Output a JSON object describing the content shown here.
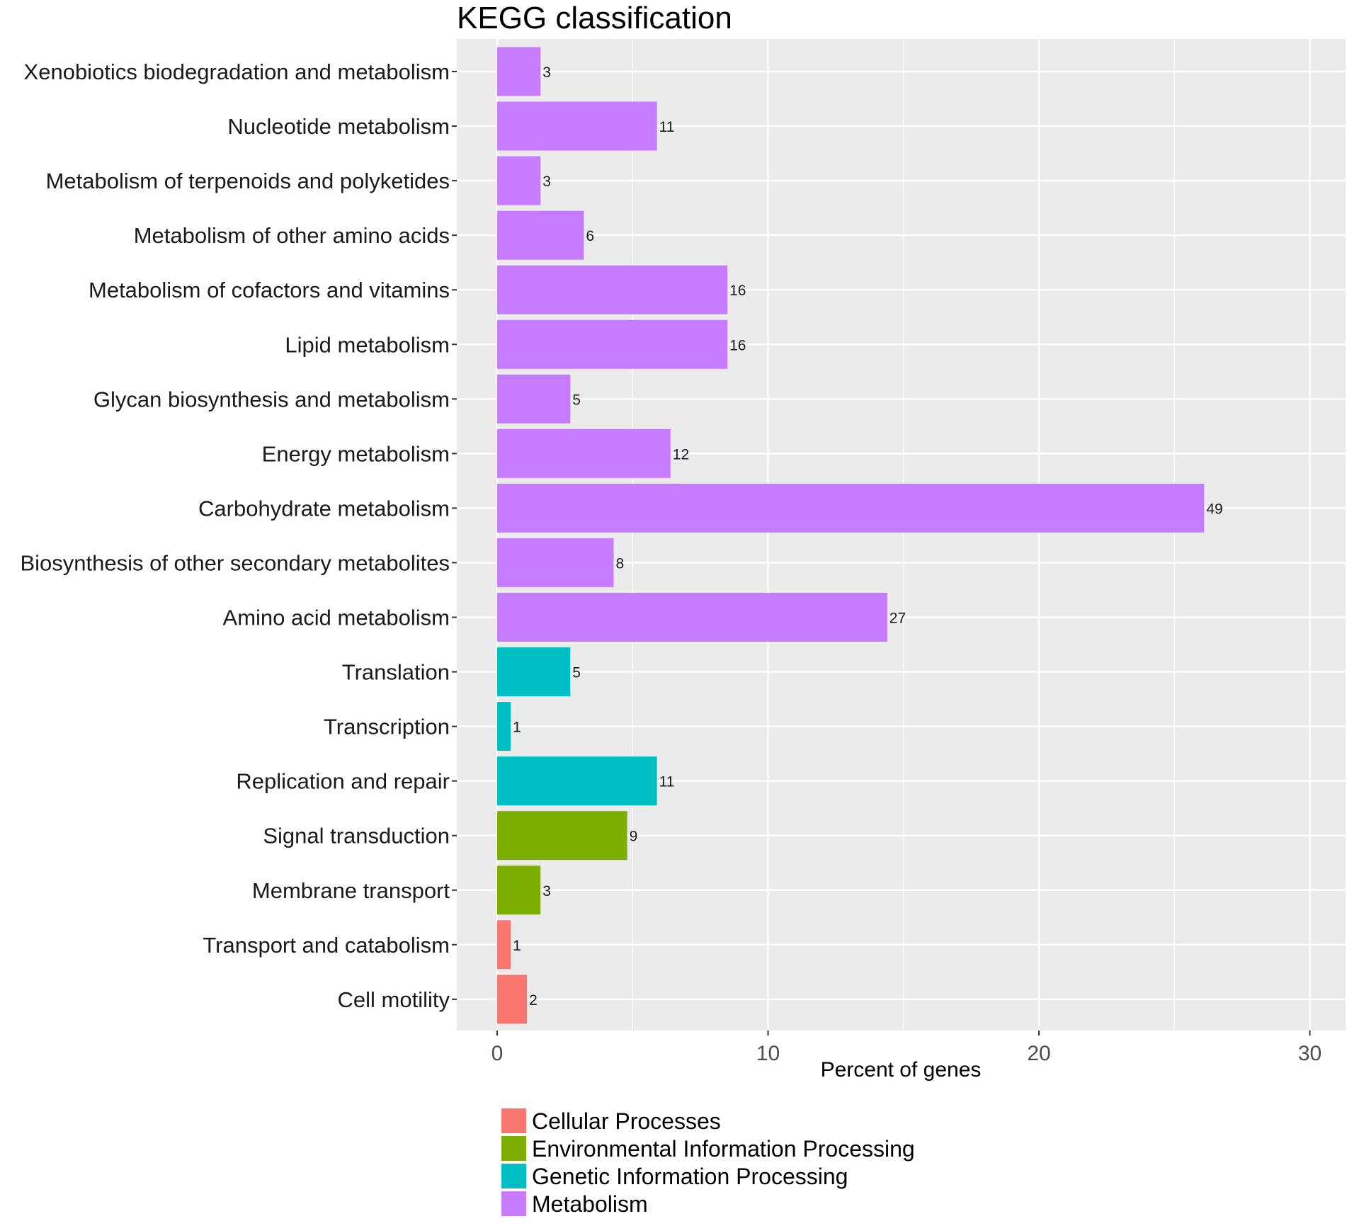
{
  "chart_data": {
    "type": "bar",
    "orientation": "horizontal",
    "title": "KEGG classification",
    "xlabel": "Percent of genes",
    "ylabel": "",
    "xlim": [
      0,
      31
    ],
    "xticks": [
      0,
      10,
      20,
      30
    ],
    "x_minor_ticks": [
      5,
      15,
      25
    ],
    "grid": true,
    "legend_position": "bottom-left",
    "categories": [
      "Xenobiotics biodegradation and metabolism",
      "Nucleotide metabolism",
      "Metabolism of terpenoids and polyketides",
      "Metabolism of other amino acids",
      "Metabolism of cofactors and vitamins",
      "Lipid metabolism",
      "Glycan biosynthesis and metabolism",
      "Energy metabolism",
      "Carbohydrate metabolism",
      "Biosynthesis of other secondary metabolites",
      "Amino acid metabolism",
      "Translation",
      "Transcription",
      "Replication and repair",
      "Signal transduction",
      "Membrane transport",
      "Transport and catabolism",
      "Cell motility"
    ],
    "percent_values": [
      1.6,
      5.9,
      1.6,
      3.2,
      8.5,
      8.5,
      2.7,
      6.4,
      26.1,
      4.3,
      14.4,
      2.7,
      0.5,
      5.9,
      4.8,
      1.6,
      0.5,
      1.1
    ],
    "gene_counts": [
      "3",
      "11",
      "3",
      "6",
      "16",
      "16",
      "5",
      "12",
      "49",
      "8",
      "27",
      "5",
      "1",
      "11",
      "9",
      "3",
      "1",
      "2"
    ],
    "groups": [
      "Metabolism",
      "Metabolism",
      "Metabolism",
      "Metabolism",
      "Metabolism",
      "Metabolism",
      "Metabolism",
      "Metabolism",
      "Metabolism",
      "Metabolism",
      "Metabolism",
      "Genetic Information Processing",
      "Genetic Information Processing",
      "Genetic Information Processing",
      "Environmental Information Processing",
      "Environmental Information Processing",
      "Cellular Processes",
      "Cellular Processes"
    ],
    "legend": [
      {
        "label": "Cellular Processes",
        "color": "#F8766D"
      },
      {
        "label": "Environmental Information Processing",
        "color": "#7CAE00"
      },
      {
        "label": "Genetic Information Processing",
        "color": "#00BFC4"
      },
      {
        "label": "Metabolism",
        "color": "#C77CFF"
      }
    ],
    "colors": {
      "panel_background": "#EBEBEB",
      "grid": "#FFFFFF",
      "tick": "#333333"
    }
  }
}
